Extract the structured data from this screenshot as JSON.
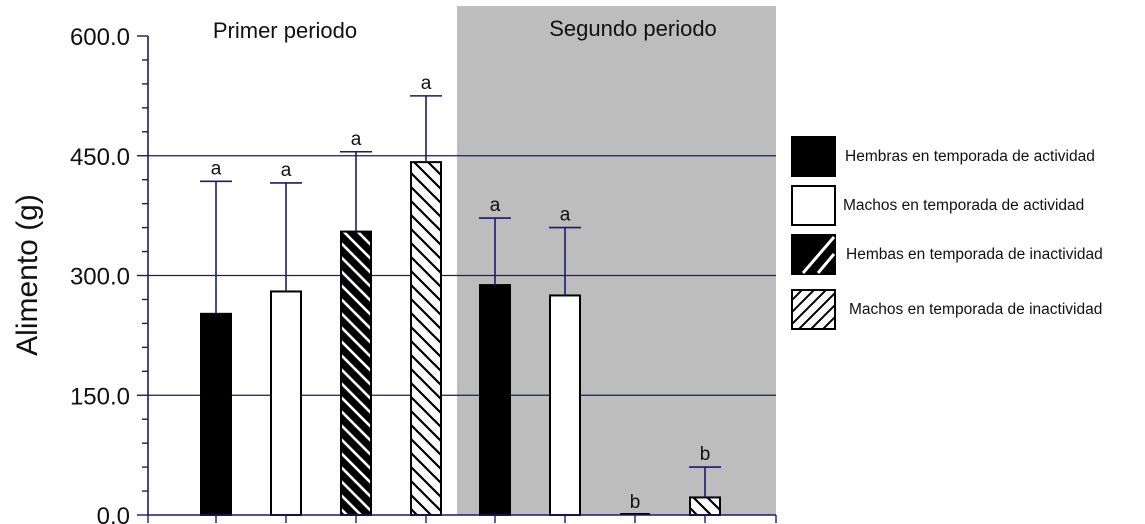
{
  "chart_data": {
    "type": "bar",
    "ylabel": "Alimento (g)",
    "ylim": [
      0,
      600
    ],
    "yticks": [
      "0.0",
      "150.0",
      "300.0",
      "450.0",
      "600.0"
    ],
    "grid_lines_y": [
      150,
      300,
      450
    ],
    "periods": [
      {
        "label": "Primer periodo",
        "shaded": false
      },
      {
        "label": "Segundo periodo",
        "shaded": true
      }
    ],
    "legend_position": "right",
    "series": [
      {
        "name": "Hembras en temporada de actividad",
        "pattern": "solid-black"
      },
      {
        "name": "Machos en temporada de  actividad",
        "pattern": "white"
      },
      {
        "name": "Hembas en temporada de inactividad",
        "pattern": "black-hatch"
      },
      {
        "name": "Machos en temporada de inactividad",
        "pattern": "white-hatch"
      }
    ],
    "bars": [
      {
        "period": 0,
        "series": 0,
        "value": 252,
        "error_top": 418,
        "letter": "a"
      },
      {
        "period": 0,
        "series": 1,
        "value": 280,
        "error_top": 416,
        "letter": "a"
      },
      {
        "period": 0,
        "series": 2,
        "value": 355,
        "error_top": 455,
        "letter": "a"
      },
      {
        "period": 0,
        "series": 3,
        "value": 442,
        "error_top": 525,
        "letter": "a"
      },
      {
        "period": 1,
        "series": 0,
        "value": 288,
        "error_top": 372,
        "letter": "a"
      },
      {
        "period": 1,
        "series": 1,
        "value": 275,
        "error_top": 360,
        "letter": "a"
      },
      {
        "period": 1,
        "series": 2,
        "value": 0,
        "error_top": 0,
        "letter": "b"
      },
      {
        "period": 1,
        "series": 3,
        "value": 22,
        "error_top": 60,
        "letter": "b"
      }
    ],
    "colors": {
      "shade": "#bdbdbd",
      "axis": "#1a1a6e",
      "bar_dark": "#000000",
      "bar_light": "#ffffff"
    }
  }
}
